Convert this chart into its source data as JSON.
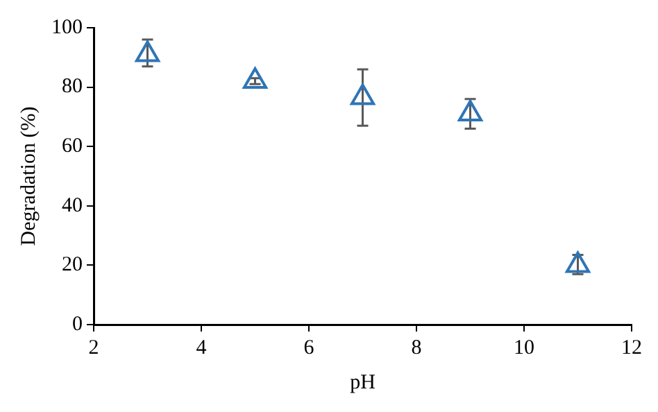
{
  "chart_data": {
    "type": "scatter",
    "xlabel": "pH",
    "ylabel": "Degradation (%)",
    "x": [
      3,
      5,
      7,
      9,
      11
    ],
    "series": [
      {
        "color": "#2e75b6",
        "values": [
          91,
          82,
          76.5,
          71,
          20
        ],
        "errors": [
          [
            87,
            96
          ],
          [
            81,
            83
          ],
          [
            67,
            86
          ],
          [
            66,
            76
          ],
          [
            17,
            23.5
          ]
        ]
      }
    ],
    "xlim": [
      2,
      12
    ],
    "xticks": [
      2,
      4,
      6,
      8,
      10,
      12
    ],
    "ylim": [
      0,
      100
    ],
    "yticks": [
      0,
      20,
      40,
      60,
      80,
      100
    ],
    "grid": false,
    "legend": false,
    "marker": "triangle"
  }
}
